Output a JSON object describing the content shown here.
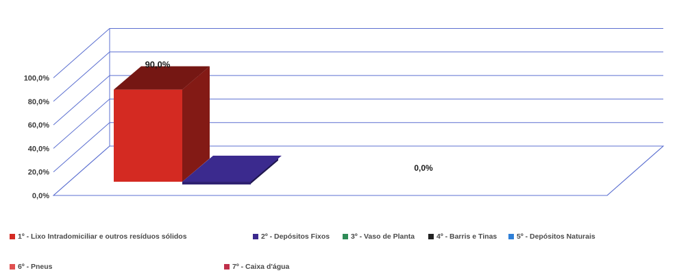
{
  "chart_data": {
    "type": "bar",
    "style": "3d-column",
    "categories": [
      "1º - Lixo Intradomiciliar e outros resíduos sólidos",
      "2º - Depósitos Fixos",
      "3º - Vaso de Planta",
      "4º - Barris e Tinas",
      "5º - Depósitos Naturais",
      "6º - Pneus",
      "7º - Caixa d'água"
    ],
    "values": [
      90.0,
      10.0,
      0.0,
      0.0,
      0.0,
      0.0,
      0.0
    ],
    "colors": [
      "#d42a22",
      "#3b2a8e",
      "#2e8b57",
      "#222222",
      "#2f80d8",
      "#e05050",
      "#c0304a"
    ],
    "value_labels": [
      "90,0%",
      "",
      "",
      "",
      "",
      "",
      ""
    ],
    "annotation": "0,0%",
    "yticks": [
      "0,0%",
      "20,0%",
      "40,0%",
      "60,0%",
      "80,0%",
      "100,0%"
    ],
    "ylim": [
      0,
      100
    ],
    "grid": true,
    "legend_position": "bottom"
  }
}
